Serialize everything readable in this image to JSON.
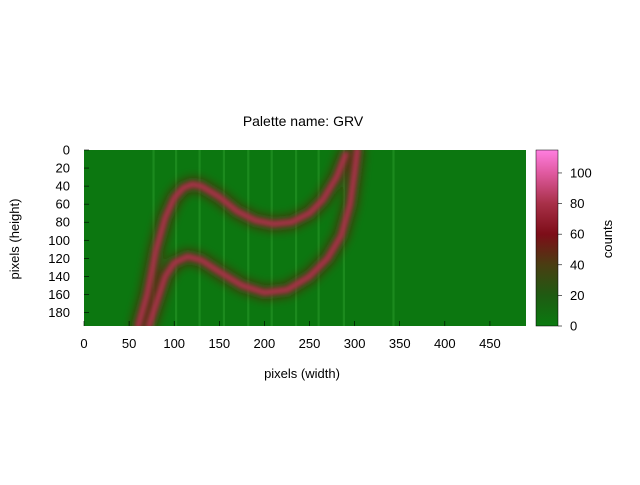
{
  "chart_data": {
    "type": "heatmap",
    "title": "Palette name: GRV",
    "xlabel": "pixels (width)",
    "ylabel": "pixels (height)",
    "colorbar_label": "counts",
    "xlim": [
      0,
      490
    ],
    "ylim": [
      0,
      195
    ],
    "y_reversed": true,
    "x_ticks": [
      0,
      50,
      100,
      150,
      200,
      250,
      300,
      350,
      400,
      450
    ],
    "y_ticks": [
      0,
      20,
      40,
      60,
      80,
      100,
      120,
      140,
      160,
      180
    ],
    "colorbar_range": [
      0,
      115
    ],
    "colorbar_ticks": [
      0,
      20,
      40,
      60,
      80,
      100
    ],
    "palette": [
      {
        "value": 0,
        "color": "#0a7a10"
      },
      {
        "value": 20,
        "color": "#1f5b12"
      },
      {
        "value": 40,
        "color": "#4a3d12"
      },
      {
        "value": 60,
        "color": "#7d0d18"
      },
      {
        "value": 80,
        "color": "#a83048"
      },
      {
        "value": 100,
        "color": "#e05aa0"
      },
      {
        "value": 115,
        "color": "#ff7ee0"
      }
    ],
    "background_counts": 2,
    "peak_counts": 80,
    "upper_arc": [
      {
        "x": 60,
        "y": 195
      },
      {
        "x": 70,
        "y": 160
      },
      {
        "x": 80,
        "y": 110
      },
      {
        "x": 90,
        "y": 75
      },
      {
        "x": 100,
        "y": 53
      },
      {
        "x": 110,
        "y": 42
      },
      {
        "x": 120,
        "y": 38
      },
      {
        "x": 130,
        "y": 40
      },
      {
        "x": 150,
        "y": 52
      },
      {
        "x": 170,
        "y": 68
      },
      {
        "x": 190,
        "y": 78
      },
      {
        "x": 210,
        "y": 82
      },
      {
        "x": 230,
        "y": 80
      },
      {
        "x": 250,
        "y": 70
      },
      {
        "x": 265,
        "y": 55
      },
      {
        "x": 280,
        "y": 30
      },
      {
        "x": 290,
        "y": 5
      }
    ],
    "lower_arc": [
      {
        "x": 72,
        "y": 195
      },
      {
        "x": 80,
        "y": 170
      },
      {
        "x": 90,
        "y": 140
      },
      {
        "x": 100,
        "y": 125
      },
      {
        "x": 115,
        "y": 118
      },
      {
        "x": 130,
        "y": 122
      },
      {
        "x": 150,
        "y": 135
      },
      {
        "x": 175,
        "y": 150
      },
      {
        "x": 200,
        "y": 158
      },
      {
        "x": 225,
        "y": 155
      },
      {
        "x": 250,
        "y": 140
      },
      {
        "x": 270,
        "y": 120
      },
      {
        "x": 285,
        "y": 95
      },
      {
        "x": 295,
        "y": 60
      },
      {
        "x": 300,
        "y": 25
      },
      {
        "x": 303,
        "y": 0
      }
    ],
    "stripes_x": [
      77,
      102,
      128,
      155,
      182,
      208,
      235,
      260,
      288,
      343
    ]
  }
}
